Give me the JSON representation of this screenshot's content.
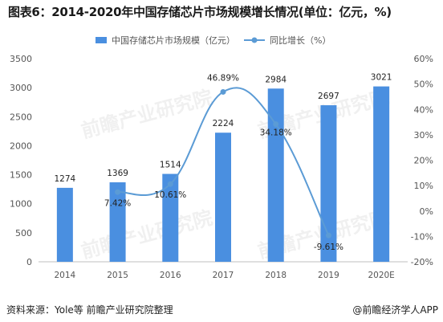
{
  "figure": {
    "title": "图表6：2014-2020年中国存储芯片市场规模增长情况(单位：亿元，%)",
    "source": "资料来源：Yole等 前瞻产业研究院整理",
    "brand": "@前瞻经济学人APP",
    "watermark": "前瞻产业研究院"
  },
  "chart_data": {
    "type": "bar",
    "categories": [
      "2014",
      "2015",
      "2016",
      "2017",
      "2018",
      "2019",
      "2020E"
    ],
    "series": [
      {
        "name": "中国存储芯片市场规模（亿元）",
        "type": "bar",
        "axis": "left",
        "color": "#4a8fe0",
        "values": [
          1274,
          1369,
          1514,
          2224,
          2984,
          2697,
          3021
        ],
        "labels": [
          "1274",
          "1369",
          "1514",
          "2224",
          "2984",
          "2697",
          "3021"
        ]
      },
      {
        "name": "同比增长（%）",
        "type": "line",
        "axis": "right",
        "color": "#5b9bd5",
        "values": [
          null,
          7.42,
          10.61,
          46.89,
          34.18,
          -9.61,
          null
        ],
        "labels": [
          "",
          "7.42%",
          "10.61%",
          "46.89%",
          "34.18%",
          "-9.61%",
          ""
        ]
      }
    ],
    "y_left": {
      "range": [
        0,
        3500
      ],
      "ticks": [
        0,
        500,
        1000,
        1500,
        2000,
        2500,
        3000,
        3500
      ],
      "tick_labels": [
        "0",
        "500",
        "1000",
        "1500",
        "2000",
        "2500",
        "3000",
        "3500"
      ]
    },
    "y_right": {
      "range": [
        -20,
        60
      ],
      "ticks": [
        -20,
        -10,
        0,
        10,
        20,
        30,
        40,
        50,
        60
      ],
      "tick_labels": [
        "-20%",
        "-10%",
        "0%",
        "10%",
        "20%",
        "30%",
        "40%",
        "50%",
        "60%"
      ]
    },
    "grid": false,
    "legend_position": "top-center"
  }
}
